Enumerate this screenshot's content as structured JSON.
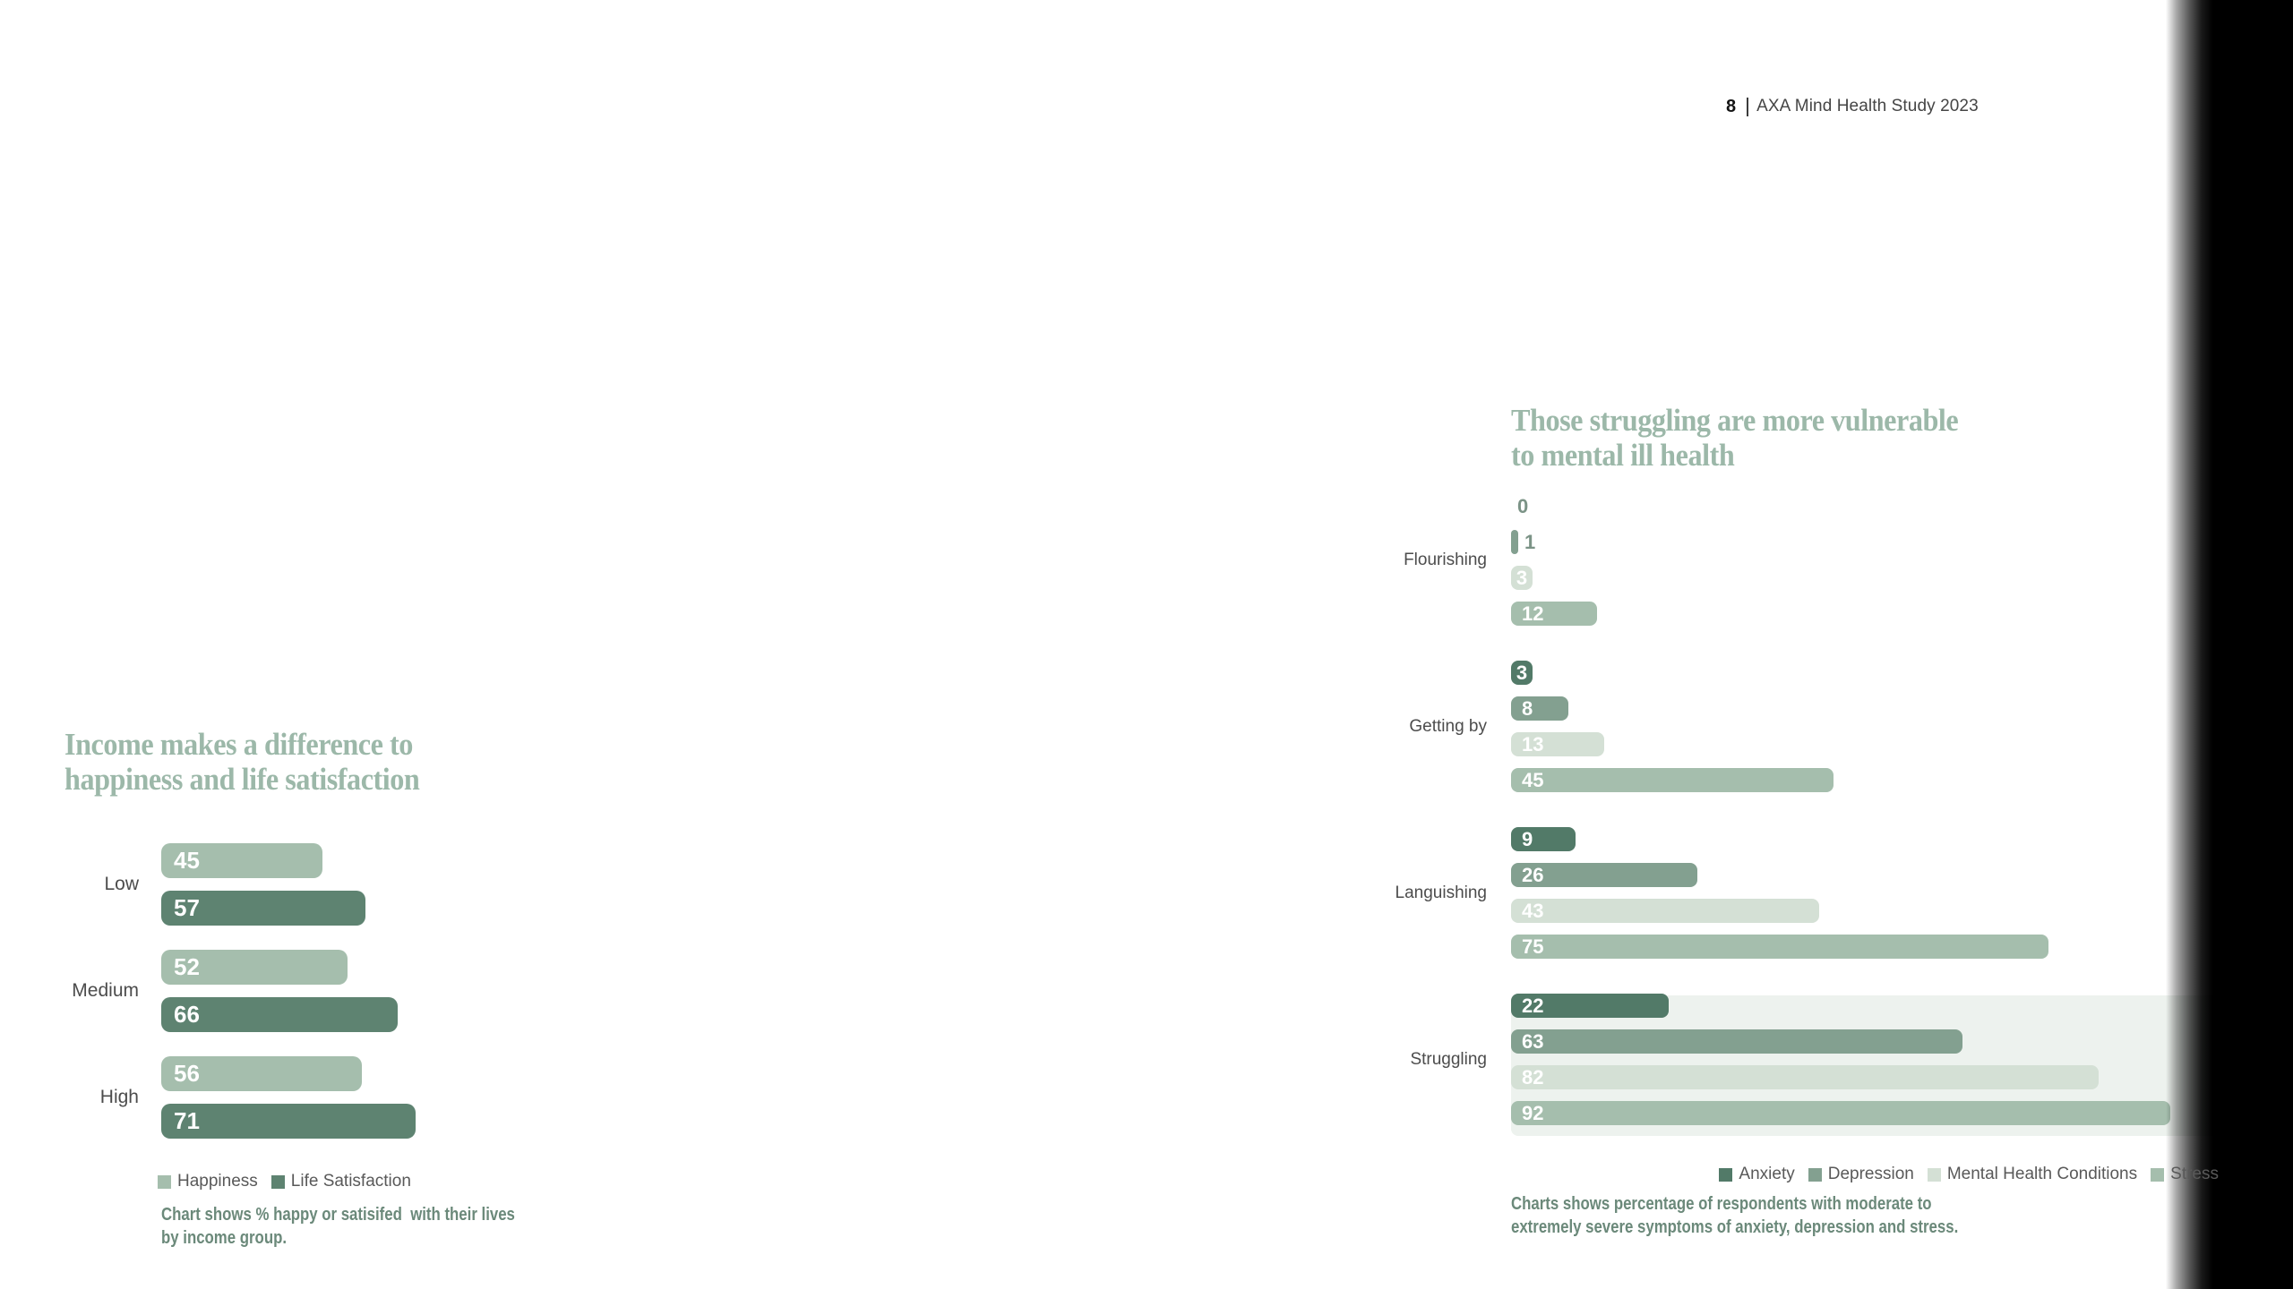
{
  "header": {
    "page_number": "8",
    "title": "AXA Mind Health Study 2023"
  },
  "colors": {
    "title": "#9cb8a9",
    "caption": "#6b897a",
    "category_label": "#4c4c4c",
    "legend_label": "#595959",
    "value_inside": "#ffffff",
    "value_outside": "#7b9386",
    "highlight_box": "#edf2ee",
    "edge_band": "#000000"
  },
  "chart_data": [
    {
      "type": "bar",
      "orientation": "horizontal",
      "title": "Income makes a difference to happiness and life satisfaction",
      "title_lines": [
        "Income makes a difference to",
        "happiness and life satisfaction"
      ],
      "categories": [
        "Low",
        "Medium",
        "High"
      ],
      "series": [
        {
          "name": "Happiness",
          "color": "#a5bead",
          "values": [
            45,
            52,
            56
          ]
        },
        {
          "name": "Life Satisfaction",
          "color": "#5e8371",
          "values": [
            57,
            66,
            71
          ]
        }
      ],
      "xlim": [
        0,
        100
      ],
      "unit": "%",
      "grid": false,
      "legend_position": "bottom",
      "caption_lines": [
        "Chart shows % happy or satisifed  with their lives",
        "by income group."
      ]
    },
    {
      "type": "bar",
      "orientation": "horizontal",
      "title": "Those struggling are more vulnerable to mental ill health",
      "title_lines": [
        "Those struggling are more vulnerable",
        "to mental ill health"
      ],
      "categories": [
        "Flourishing",
        "Getting by",
        "Languishing",
        "Struggling"
      ],
      "series": [
        {
          "name": "Anxiety",
          "color": "#527a68",
          "values": [
            0,
            3,
            9,
            22
          ]
        },
        {
          "name": "Depression",
          "color": "#83a090",
          "values": [
            1,
            8,
            26,
            63
          ]
        },
        {
          "name": "Mental Health Conditions",
          "color": "#d4e0d5",
          "values": [
            3,
            13,
            43,
            82
          ]
        },
        {
          "name": "Stress",
          "color": "#a5bead",
          "values": [
            12,
            45,
            75,
            92
          ]
        }
      ],
      "highlighted_category": "Struggling",
      "xlim": [
        0,
        100
      ],
      "unit": "%",
      "grid": false,
      "legend_position": "bottom-right",
      "caption_lines": [
        "Charts shows percentage of respondents with moderate to",
        "extremely severe symptoms of anxiety, depression and stress."
      ]
    }
  ]
}
